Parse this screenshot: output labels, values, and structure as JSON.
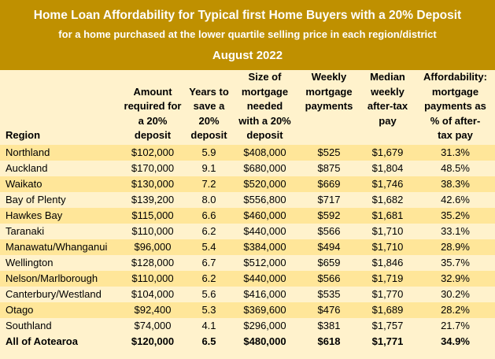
{
  "title": "Home Loan Affordability for Typical first Home Buyers with a 20% Deposit",
  "subtitle": "for a home purchased at the lower quartile selling price in each region/district",
  "date": "August 2022",
  "headers": {
    "region": "Region",
    "amount": [
      "Amount",
      "required for",
      "a 20%",
      "deposit"
    ],
    "years": [
      "Years to",
      "save a",
      "20%",
      "deposit"
    ],
    "mortgage": [
      "Size of",
      "mortgage",
      "needed",
      "with a 20%",
      "deposit"
    ],
    "weekly": [
      "Weekly",
      "mortgage",
      "payments"
    ],
    "pay": [
      "Median",
      "weekly",
      "after-tax",
      "pay"
    ],
    "afford": [
      "Affordability:",
      "mortgage",
      "payments as",
      "% of after-",
      "tax pay"
    ]
  },
  "rows": [
    [
      "Northland",
      "$102,000",
      "5.9",
      "$408,000",
      "$525",
      "$1,679",
      "31.3%"
    ],
    [
      "Auckland",
      "$170,000",
      "9.1",
      "$680,000",
      "$875",
      "$1,804",
      "48.5%"
    ],
    [
      "Waikato",
      "$130,000",
      "7.2",
      "$520,000",
      "$669",
      "$1,746",
      "38.3%"
    ],
    [
      "Bay of Plenty",
      "$139,200",
      "8.0",
      "$556,800",
      "$717",
      "$1,682",
      "42.6%"
    ],
    [
      "Hawkes Bay",
      "$115,000",
      "6.6",
      "$460,000",
      "$592",
      "$1,681",
      "35.2%"
    ],
    [
      "Taranaki",
      "$110,000",
      "6.2",
      "$440,000",
      "$566",
      "$1,710",
      "33.1%"
    ],
    [
      "Manawatu/Whanganui",
      "$96,000",
      "5.4",
      "$384,000",
      "$494",
      "$1,710",
      "28.9%"
    ],
    [
      "Wellington",
      "$128,000",
      "6.7",
      "$512,000",
      "$659",
      "$1,846",
      "35.7%"
    ],
    [
      "Nelson/Marlborough",
      "$110,000",
      "6.2",
      "$440,000",
      "$566",
      "$1,719",
      "32.9%"
    ],
    [
      "Canterbury/Westland",
      "$104,000",
      "5.6",
      "$416,000",
      "$535",
      "$1,770",
      "30.2%"
    ],
    [
      "Otago",
      "$92,400",
      "5.3",
      "$369,600",
      "$476",
      "$1,689",
      "28.2%"
    ],
    [
      "Southland",
      "$74,000",
      "4.1",
      "$296,000",
      "$381",
      "$1,757",
      "21.7%"
    ],
    [
      "All of Aotearoa",
      "$120,000",
      "6.5",
      "$480,000",
      "$618",
      "$1,771",
      "34.9%"
    ]
  ]
}
